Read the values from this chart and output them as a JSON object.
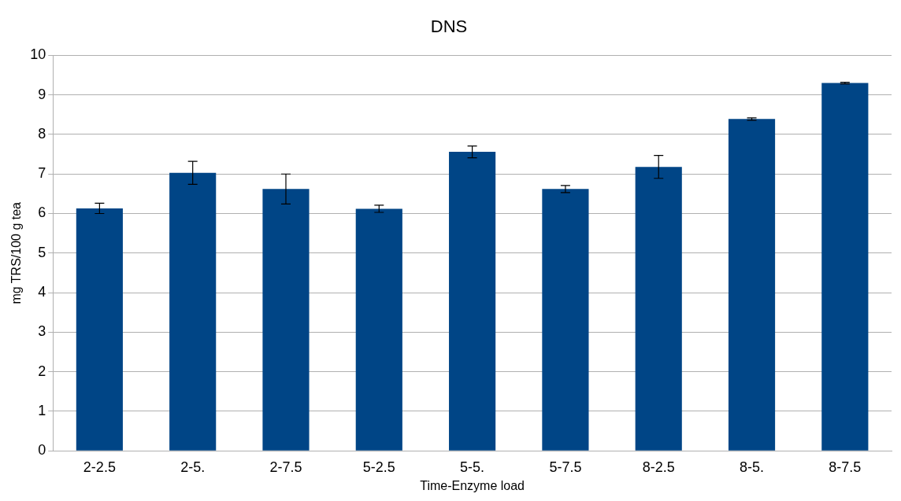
{
  "chart_data": {
    "type": "bar",
    "title": "DNS",
    "xlabel": "Time-Enzyme load",
    "ylabel": "mg TRS/100 g tea",
    "categories": [
      "2-2.5",
      "2-5.",
      "2-7.5",
      "5-2.5",
      "5-5.",
      "5-7.5",
      "8-2.5",
      "8-5.",
      "8-7.5"
    ],
    "values": [
      6.13,
      7.03,
      6.62,
      6.12,
      7.56,
      6.62,
      7.18,
      8.39,
      9.3
    ],
    "errors": [
      0.13,
      0.29,
      0.38,
      0.09,
      0.15,
      0.09,
      0.29,
      0.03,
      0.02
    ],
    "color": "#004586",
    "ylim": [
      0,
      10
    ],
    "yticks": [
      0,
      1,
      2,
      3,
      4,
      5,
      6,
      7,
      8,
      9,
      10
    ],
    "grid": "y",
    "legend": false
  }
}
